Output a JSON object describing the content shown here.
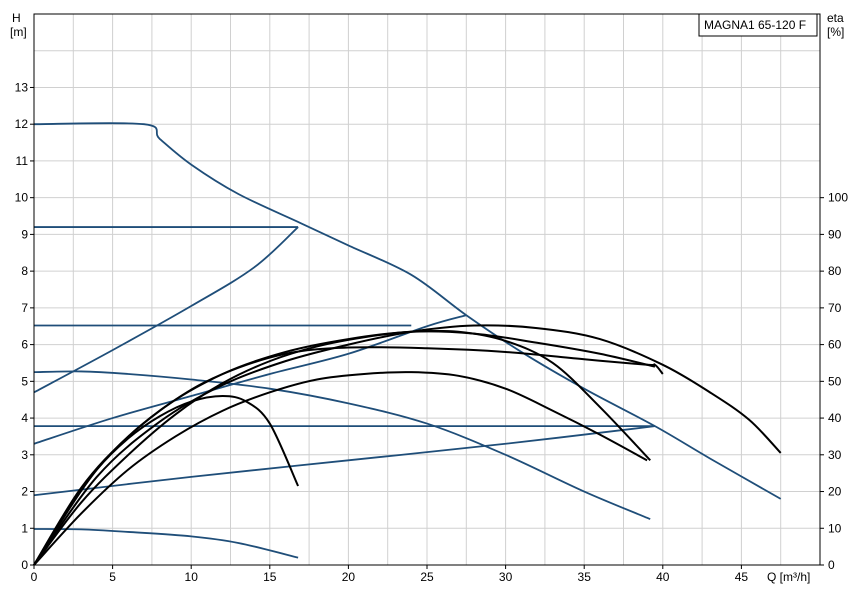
{
  "chart_data": {
    "type": "line",
    "title": "MAGNA1 65-120 F",
    "y_left_label": [
      "H",
      "[m]"
    ],
    "y_right_label": [
      "eta",
      "[%]"
    ],
    "x_label": "Q [m³/h]",
    "xlim": [
      0,
      50
    ],
    "ylim": [
      0,
      15
    ],
    "y2lim": [
      0,
      150
    ],
    "grid": true,
    "x_ticks": [
      0,
      5,
      10,
      15,
      20,
      25,
      30,
      35,
      40,
      45
    ],
    "y_ticks": [
      0,
      1,
      2,
      3,
      4,
      5,
      6,
      7,
      8,
      9,
      10,
      11,
      12,
      13
    ],
    "y2_ticks": [
      0,
      10,
      20,
      30,
      40,
      50,
      60,
      70,
      80,
      90,
      100
    ],
    "footer_text": "",
    "series": [
      {
        "role": "pump-curve",
        "color": "#1f4e79",
        "points": [
          [
            0,
            12
          ],
          [
            7,
            12
          ],
          [
            8,
            11.6
          ],
          [
            10,
            10.9
          ],
          [
            13,
            10.1
          ],
          [
            17,
            9.3
          ],
          [
            20,
            8.7
          ],
          [
            24,
            7.9
          ],
          [
            27.5,
            6.8
          ],
          [
            31,
            5.8
          ],
          [
            35,
            4.8
          ],
          [
            39.5,
            3.78
          ],
          [
            43,
            2.9
          ],
          [
            47.5,
            1.8
          ]
        ]
      },
      {
        "role": "pump-curve",
        "color": "#1f4e79",
        "points": [
          [
            0,
            9.2
          ],
          [
            16.8,
            9.2
          ]
        ]
      },
      {
        "role": "pump-curve",
        "color": "#1f4e79",
        "points": [
          [
            0,
            6.52
          ],
          [
            24,
            6.52
          ]
        ]
      },
      {
        "role": "pump-curve",
        "color": "#1f4e79",
        "points": [
          [
            0,
            3.78
          ],
          [
            39.5,
            3.78
          ]
        ]
      },
      {
        "role": "pump-curve",
        "color": "#1f4e79",
        "points": [
          [
            0,
            4.7
          ],
          [
            5,
            5.85
          ],
          [
            10,
            7.05
          ],
          [
            14,
            8.1
          ],
          [
            16.8,
            9.2
          ]
        ]
      },
      {
        "role": "pump-curve",
        "color": "#1f4e79",
        "points": [
          [
            0,
            3.3
          ],
          [
            5,
            4.0
          ],
          [
            10,
            4.6
          ],
          [
            15,
            5.2
          ],
          [
            20,
            5.75
          ],
          [
            25,
            6.5
          ],
          [
            27.5,
            6.8
          ]
        ]
      },
      {
        "role": "pump-curve",
        "color": "#1f4e79",
        "points": [
          [
            0,
            1.9
          ],
          [
            10,
            2.4
          ],
          [
            20,
            2.85
          ],
          [
            30,
            3.3
          ],
          [
            39.5,
            3.78
          ]
        ]
      },
      {
        "role": "pump-curve",
        "color": "#1f4e79",
        "points": [
          [
            0,
            5.25
          ],
          [
            3,
            5.27
          ],
          [
            6,
            5.2
          ],
          [
            10,
            5.05
          ],
          [
            15,
            4.8
          ],
          [
            20,
            4.4
          ],
          [
            25,
            3.85
          ],
          [
            30,
            3.0
          ],
          [
            35,
            2.0
          ],
          [
            39.2,
            1.25
          ]
        ]
      },
      {
        "role": "pump-curve",
        "color": "#1f4e79",
        "points": [
          [
            0,
            0.98
          ],
          [
            3,
            0.97
          ],
          [
            6,
            0.9
          ],
          [
            10,
            0.78
          ],
          [
            13,
            0.6
          ],
          [
            16.8,
            0.2
          ]
        ]
      },
      {
        "role": "efficiency",
        "color": "#000000",
        "points": [
          [
            0,
            0
          ],
          [
            2,
            1.4
          ],
          [
            4,
            2.6
          ],
          [
            6,
            3.45
          ],
          [
            8,
            4.05
          ],
          [
            10,
            4.45
          ],
          [
            12,
            4.6
          ],
          [
            13.5,
            4.45
          ],
          [
            15,
            3.85
          ],
          [
            16.8,
            2.15
          ]
        ]
      },
      {
        "role": "efficiency",
        "color": "#000000",
        "points": [
          [
            0,
            0
          ],
          [
            3,
            1.4
          ],
          [
            6,
            2.6
          ],
          [
            9,
            3.5
          ],
          [
            12,
            4.2
          ],
          [
            15,
            4.7
          ],
          [
            18,
            5.05
          ],
          [
            21,
            5.2
          ],
          [
            24,
            5.25
          ],
          [
            27,
            5.15
          ],
          [
            30,
            4.8
          ],
          [
            33,
            4.2
          ],
          [
            36,
            3.55
          ],
          [
            39,
            2.85
          ]
        ]
      },
      {
        "role": "efficiency",
        "color": "#000000",
        "points": [
          [
            0,
            0
          ],
          [
            3,
            1.7
          ],
          [
            6,
            3.0
          ],
          [
            9,
            4.1
          ],
          [
            12,
            4.95
          ],
          [
            15,
            5.55
          ],
          [
            18,
            5.95
          ],
          [
            21,
            6.2
          ],
          [
            24,
            6.35
          ],
          [
            27,
            6.35
          ],
          [
            30,
            6.1
          ],
          [
            33,
            5.5
          ],
          [
            36,
            4.3
          ],
          [
            39.2,
            2.85
          ]
        ]
      },
      {
        "role": "efficiency",
        "color": "#000000",
        "points": [
          [
            0,
            0
          ],
          [
            4,
            2.4
          ],
          [
            8,
            3.9
          ],
          [
            12,
            4.9
          ],
          [
            16,
            5.55
          ],
          [
            20,
            6.0
          ],
          [
            24,
            6.35
          ],
          [
            28,
            6.52
          ],
          [
            32,
            6.45
          ],
          [
            36,
            6.15
          ],
          [
            40,
            5.45
          ],
          [
            43,
            4.7
          ],
          [
            45.5,
            3.95
          ],
          [
            47.5,
            3.05
          ]
        ]
      },
      {
        "role": "efficiency",
        "color": "#000000",
        "points": [
          [
            0,
            0
          ],
          [
            3,
            2.1
          ],
          [
            6,
            3.5
          ],
          [
            9,
            4.5
          ],
          [
            12,
            5.2
          ],
          [
            16,
            5.75
          ],
          [
            20,
            5.92
          ],
          [
            25,
            5.9
          ],
          [
            30,
            5.8
          ],
          [
            35,
            5.6
          ],
          [
            39,
            5.45
          ],
          [
            39.5,
            5.45
          ],
          [
            40,
            5.2
          ]
        ]
      },
      {
        "role": "efficiency",
        "color": "#000000",
        "points": [
          [
            0,
            0
          ],
          [
            4,
            2.6
          ],
          [
            8,
            4.2
          ],
          [
            12,
            5.2
          ],
          [
            16,
            5.8
          ],
          [
            20,
            6.15
          ],
          [
            24,
            6.35
          ],
          [
            28,
            6.3
          ],
          [
            32,
            6.05
          ],
          [
            36,
            5.75
          ],
          [
            39.5,
            5.4
          ]
        ]
      }
    ]
  }
}
